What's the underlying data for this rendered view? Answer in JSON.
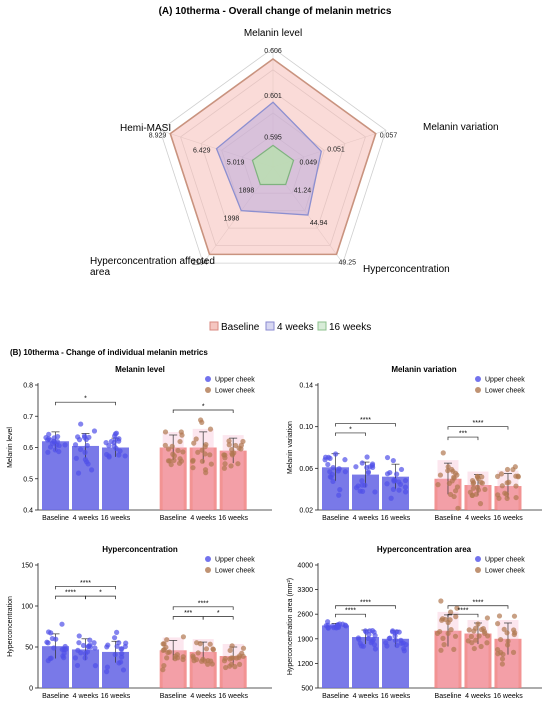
{
  "panel_a": {
    "title": "(A) 10therma - Overall change of melanin metrics",
    "legend": [
      "Baseline",
      "4 weeks",
      "16 weeks"
    ]
  },
  "panel_b": {
    "title": "(B) 10therma - Change of individual melanin metrics",
    "legend": [
      "Upper cheek",
      "Lower cheek"
    ]
  },
  "colors": {
    "baseline": "#e8a08e",
    "weeks4": "#8c8fd0",
    "weeks16": "#9cc99c",
    "upper": "#6a6ae6",
    "lower": "#f08080",
    "upper_dot": "#5050e8",
    "lower_dot": "#b07850"
  },
  "chart_data": [
    {
      "type": "radar",
      "title": "(A) 10therma - Overall change of melanin metrics",
      "axes": [
        "Melanin level",
        "Melanin variation",
        "Hyperconcentration",
        "Hyperconcentration affected area",
        "Hemi-MASI"
      ],
      "series": [
        {
          "name": "Baseline",
          "values": [
            0.606,
            0.057,
            49.25,
            2194,
            8.929
          ],
          "value_labels": [
            "0.606",
            "0.057",
            "49.25",
            "2194",
            "8.929"
          ],
          "fractions": [
            1.0,
            1.0,
            1.0,
            1.0,
            1.0
          ]
        },
        {
          "name": "4 weeks",
          "values": [
            0.601,
            0.051,
            44.94,
            1998,
            6.429
          ],
          "value_labels": [
            "0.601",
            "0.051",
            "44.94",
            "1998",
            "6.429"
          ],
          "fractions": [
            0.6,
            0.47,
            0.55,
            0.5,
            0.55
          ]
        },
        {
          "name": "16 weeks",
          "values": [
            0.595,
            0.049,
            41.24,
            1898,
            5.019
          ],
          "value_labels": [
            "0.595",
            "0.049",
            "41.24",
            "1898",
            "5.019"
          ],
          "fractions": [
            0.2,
            0.2,
            0.2,
            0.2,
            0.2
          ]
        }
      ]
    },
    {
      "type": "bar",
      "title": "Melanin level",
      "ylabel": "Melanin level",
      "ylim": [
        0.4,
        0.8
      ],
      "yticks": [
        0.4,
        0.5,
        0.6,
        0.7,
        0.8
      ],
      "tick_labels": [
        "0.4",
        "0.5",
        "0.6",
        "0.7",
        "0.8"
      ],
      "categories": [
        "Baseline",
        "4 weeks",
        "16 weeks"
      ],
      "series": [
        {
          "name": "Upper cheek",
          "values": [
            0.62,
            0.605,
            0.6
          ],
          "errors": [
            0.03,
            0.04,
            0.03
          ]
        },
        {
          "name": "Lower cheek",
          "values": [
            0.6,
            0.6,
            0.59
          ],
          "errors": [
            0.04,
            0.05,
            0.04
          ]
        }
      ],
      "annotations": [
        {
          "group": 0,
          "from": 0,
          "to": 2,
          "label": "*",
          "y": 0.745
        },
        {
          "group": 1,
          "from": 0,
          "to": 2,
          "label": "*",
          "y": 0.72
        }
      ]
    },
    {
      "type": "bar",
      "title": "Melanin variation",
      "ylabel": "Melanin variation",
      "ylim": [
        0.02,
        0.14
      ],
      "yticks": [
        0.02,
        0.06,
        0.1,
        0.14
      ],
      "tick_labels": [
        "0.02",
        "0.06",
        "0.10",
        "0.14"
      ],
      "categories": [
        "Baseline",
        "4 weeks",
        "16 weeks"
      ],
      "series": [
        {
          "name": "Upper cheek",
          "values": [
            0.061,
            0.054,
            0.052
          ],
          "errors": [
            0.013,
            0.012,
            0.012
          ]
        },
        {
          "name": "Lower cheek",
          "values": [
            0.05,
            0.044,
            0.043
          ],
          "errors": [
            0.015,
            0.01,
            0.012
          ]
        }
      ],
      "annotations": [
        {
          "group": 0,
          "from": 0,
          "to": 1,
          "label": "*",
          "y": 0.094
        },
        {
          "group": 0,
          "from": 0,
          "to": 2,
          "label": "****",
          "y": 0.103
        },
        {
          "group": 1,
          "from": 0,
          "to": 1,
          "label": "***",
          "y": 0.09
        },
        {
          "group": 1,
          "from": 0,
          "to": 2,
          "label": "****",
          "y": 0.1
        }
      ]
    },
    {
      "type": "bar",
      "title": "Hyperconcentration",
      "ylabel": "Hyperconcentration",
      "ylim": [
        0,
        150
      ],
      "yticks": [
        0,
        50,
        100,
        150
      ],
      "tick_labels": [
        "0",
        "50",
        "100",
        "150"
      ],
      "categories": [
        "Baseline",
        "4 weeks",
        "16 weeks"
      ],
      "series": [
        {
          "name": "Upper cheek",
          "values": [
            51,
            47,
            44
          ],
          "errors": [
            15,
            13,
            13
          ]
        },
        {
          "name": "Lower cheek",
          "values": [
            46,
            44,
            39
          ],
          "errors": [
            12,
            12,
            11
          ]
        }
      ],
      "annotations": [
        {
          "group": 0,
          "from": 0,
          "to": 1,
          "label": "****",
          "y": 112
        },
        {
          "group": 0,
          "from": 1,
          "to": 2,
          "label": "*",
          "y": 112
        },
        {
          "group": 0,
          "from": 0,
          "to": 2,
          "label": "****",
          "y": 124
        },
        {
          "group": 1,
          "from": 0,
          "to": 1,
          "label": "***",
          "y": 87
        },
        {
          "group": 1,
          "from": 1,
          "to": 2,
          "label": "*",
          "y": 87
        },
        {
          "group": 1,
          "from": 0,
          "to": 2,
          "label": "****",
          "y": 99
        }
      ]
    },
    {
      "type": "bar",
      "title": "Hyperconcentration area",
      "ylabel": "Hyperconcentration area (mm²)",
      "ylim": [
        500,
        4000
      ],
      "yticks": [
        500,
        1200,
        1900,
        2600,
        3300,
        4000
      ],
      "tick_labels": [
        "500",
        "1200",
        "1900",
        "2600",
        "3300",
        "4000"
      ],
      "categories": [
        "Baseline",
        "4 weeks",
        "16 weeks"
      ],
      "series": [
        {
          "name": "Upper cheek",
          "values": [
            2280,
            1950,
            1900
          ],
          "errors": [
            60,
            200,
            230
          ]
        },
        {
          "name": "Lower cheek",
          "values": [
            2130,
            2050,
            1900
          ],
          "errors": [
            450,
            300,
            450
          ]
        }
      ],
      "annotations": [
        {
          "group": 0,
          "from": 0,
          "to": 1,
          "label": "****",
          "y": 2600
        },
        {
          "group": 0,
          "from": 0,
          "to": 2,
          "label": "****",
          "y": 2840
        },
        {
          "group": 1,
          "from": 0,
          "to": 1,
          "label": "****",
          "y": 2600
        },
        {
          "group": 1,
          "from": 0,
          "to": 2,
          "label": "****",
          "y": 2840
        }
      ]
    }
  ]
}
